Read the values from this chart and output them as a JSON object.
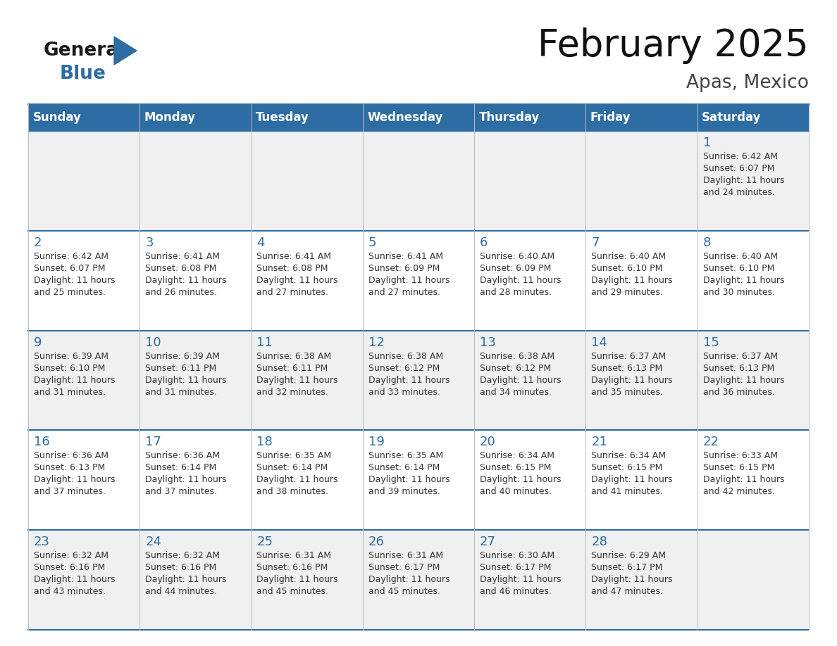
{
  "title": "February 2025",
  "subtitle": "Apas, Mexico",
  "header_color": "#2E6DA4",
  "header_text_color": "#FFFFFF",
  "day_names": [
    "Sunday",
    "Monday",
    "Tuesday",
    "Wednesday",
    "Thursday",
    "Friday",
    "Saturday"
  ],
  "cell_bg_odd": "#F0F0F0",
  "cell_bg_even": "#FFFFFF",
  "border_color": "#BBBBBB",
  "week_sep_color": "#2E6DA4",
  "day_num_color": "#2E6DA4",
  "text_color": "#333333",
  "logo_general_color": "#1A1A1A",
  "logo_blue_color": "#2E6DA4",
  "calendar": [
    [
      null,
      null,
      null,
      null,
      null,
      null,
      {
        "day": 1,
        "lines": [
          "Sunrise: 6:42 AM",
          "Sunset: 6:07 PM",
          "Daylight: 11 hours",
          "and 24 minutes."
        ]
      }
    ],
    [
      {
        "day": 2,
        "lines": [
          "Sunrise: 6:42 AM",
          "Sunset: 6:07 PM",
          "Daylight: 11 hours",
          "and 25 minutes."
        ]
      },
      {
        "day": 3,
        "lines": [
          "Sunrise: 6:41 AM",
          "Sunset: 6:08 PM",
          "Daylight: 11 hours",
          "and 26 minutes."
        ]
      },
      {
        "day": 4,
        "lines": [
          "Sunrise: 6:41 AM",
          "Sunset: 6:08 PM",
          "Daylight: 11 hours",
          "and 27 minutes."
        ]
      },
      {
        "day": 5,
        "lines": [
          "Sunrise: 6:41 AM",
          "Sunset: 6:09 PM",
          "Daylight: 11 hours",
          "and 27 minutes."
        ]
      },
      {
        "day": 6,
        "lines": [
          "Sunrise: 6:40 AM",
          "Sunset: 6:09 PM",
          "Daylight: 11 hours",
          "and 28 minutes."
        ]
      },
      {
        "day": 7,
        "lines": [
          "Sunrise: 6:40 AM",
          "Sunset: 6:10 PM",
          "Daylight: 11 hours",
          "and 29 minutes."
        ]
      },
      {
        "day": 8,
        "lines": [
          "Sunrise: 6:40 AM",
          "Sunset: 6:10 PM",
          "Daylight: 11 hours",
          "and 30 minutes."
        ]
      }
    ],
    [
      {
        "day": 9,
        "lines": [
          "Sunrise: 6:39 AM",
          "Sunset: 6:10 PM",
          "Daylight: 11 hours",
          "and 31 minutes."
        ]
      },
      {
        "day": 10,
        "lines": [
          "Sunrise: 6:39 AM",
          "Sunset: 6:11 PM",
          "Daylight: 11 hours",
          "and 31 minutes."
        ]
      },
      {
        "day": 11,
        "lines": [
          "Sunrise: 6:38 AM",
          "Sunset: 6:11 PM",
          "Daylight: 11 hours",
          "and 32 minutes."
        ]
      },
      {
        "day": 12,
        "lines": [
          "Sunrise: 6:38 AM",
          "Sunset: 6:12 PM",
          "Daylight: 11 hours",
          "and 33 minutes."
        ]
      },
      {
        "day": 13,
        "lines": [
          "Sunrise: 6:38 AM",
          "Sunset: 6:12 PM",
          "Daylight: 11 hours",
          "and 34 minutes."
        ]
      },
      {
        "day": 14,
        "lines": [
          "Sunrise: 6:37 AM",
          "Sunset: 6:13 PM",
          "Daylight: 11 hours",
          "and 35 minutes."
        ]
      },
      {
        "day": 15,
        "lines": [
          "Sunrise: 6:37 AM",
          "Sunset: 6:13 PM",
          "Daylight: 11 hours",
          "and 36 minutes."
        ]
      }
    ],
    [
      {
        "day": 16,
        "lines": [
          "Sunrise: 6:36 AM",
          "Sunset: 6:13 PM",
          "Daylight: 11 hours",
          "and 37 minutes."
        ]
      },
      {
        "day": 17,
        "lines": [
          "Sunrise: 6:36 AM",
          "Sunset: 6:14 PM",
          "Daylight: 11 hours",
          "and 37 minutes."
        ]
      },
      {
        "day": 18,
        "lines": [
          "Sunrise: 6:35 AM",
          "Sunset: 6:14 PM",
          "Daylight: 11 hours",
          "and 38 minutes."
        ]
      },
      {
        "day": 19,
        "lines": [
          "Sunrise: 6:35 AM",
          "Sunset: 6:14 PM",
          "Daylight: 11 hours",
          "and 39 minutes."
        ]
      },
      {
        "day": 20,
        "lines": [
          "Sunrise: 6:34 AM",
          "Sunset: 6:15 PM",
          "Daylight: 11 hours",
          "and 40 minutes."
        ]
      },
      {
        "day": 21,
        "lines": [
          "Sunrise: 6:34 AM",
          "Sunset: 6:15 PM",
          "Daylight: 11 hours",
          "and 41 minutes."
        ]
      },
      {
        "day": 22,
        "lines": [
          "Sunrise: 6:33 AM",
          "Sunset: 6:15 PM",
          "Daylight: 11 hours",
          "and 42 minutes."
        ]
      }
    ],
    [
      {
        "day": 23,
        "lines": [
          "Sunrise: 6:32 AM",
          "Sunset: 6:16 PM",
          "Daylight: 11 hours",
          "and 43 minutes."
        ]
      },
      {
        "day": 24,
        "lines": [
          "Sunrise: 6:32 AM",
          "Sunset: 6:16 PM",
          "Daylight: 11 hours",
          "and 44 minutes."
        ]
      },
      {
        "day": 25,
        "lines": [
          "Sunrise: 6:31 AM",
          "Sunset: 6:16 PM",
          "Daylight: 11 hours",
          "and 45 minutes."
        ]
      },
      {
        "day": 26,
        "lines": [
          "Sunrise: 6:31 AM",
          "Sunset: 6:17 PM",
          "Daylight: 11 hours",
          "and 45 minutes."
        ]
      },
      {
        "day": 27,
        "lines": [
          "Sunrise: 6:30 AM",
          "Sunset: 6:17 PM",
          "Daylight: 11 hours",
          "and 46 minutes."
        ]
      },
      {
        "day": 28,
        "lines": [
          "Sunrise: 6:29 AM",
          "Sunset: 6:17 PM",
          "Daylight: 11 hours",
          "and 47 minutes."
        ]
      },
      null
    ]
  ]
}
